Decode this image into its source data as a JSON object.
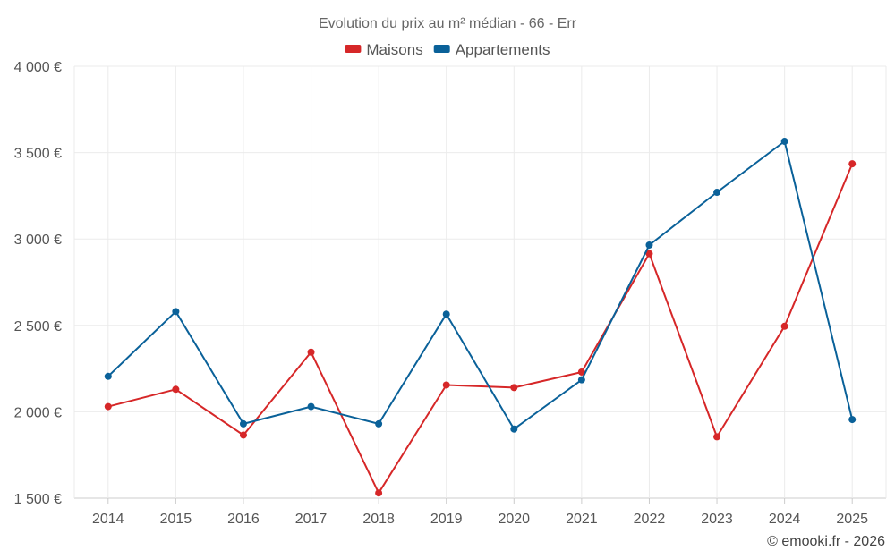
{
  "chart_data": {
    "type": "line",
    "title": "Evolution du prix au m² médian - 66 - Err",
    "categories": [
      "2014",
      "2015",
      "2016",
      "2017",
      "2018",
      "2019",
      "2020",
      "2021",
      "2022",
      "2023",
      "2024",
      "2025"
    ],
    "ylim": [
      1500,
      4000
    ],
    "yticks": [
      1500,
      2000,
      2500,
      3000,
      3500,
      4000
    ],
    "ytick_labels": [
      "1 500 €",
      "2 000 €",
      "2 500 €",
      "3 000 €",
      "3 500 €",
      "4 000 €"
    ],
    "xlabel": "",
    "ylabel": "",
    "grid": true,
    "legend_position": "top-center",
    "series": [
      {
        "name": "Maisons",
        "color": "#d62728",
        "values": [
          2030,
          2130,
          1865,
          2345,
          1530,
          2155,
          2140,
          2230,
          2915,
          1855,
          2495,
          3435
        ]
      },
      {
        "name": "Appartements",
        "color": "#0a6199",
        "values": [
          2205,
          2580,
          1930,
          2030,
          1930,
          2565,
          1900,
          2185,
          2965,
          3270,
          3565,
          1955
        ]
      }
    ]
  },
  "credit": "© emooki.fr - 2026"
}
